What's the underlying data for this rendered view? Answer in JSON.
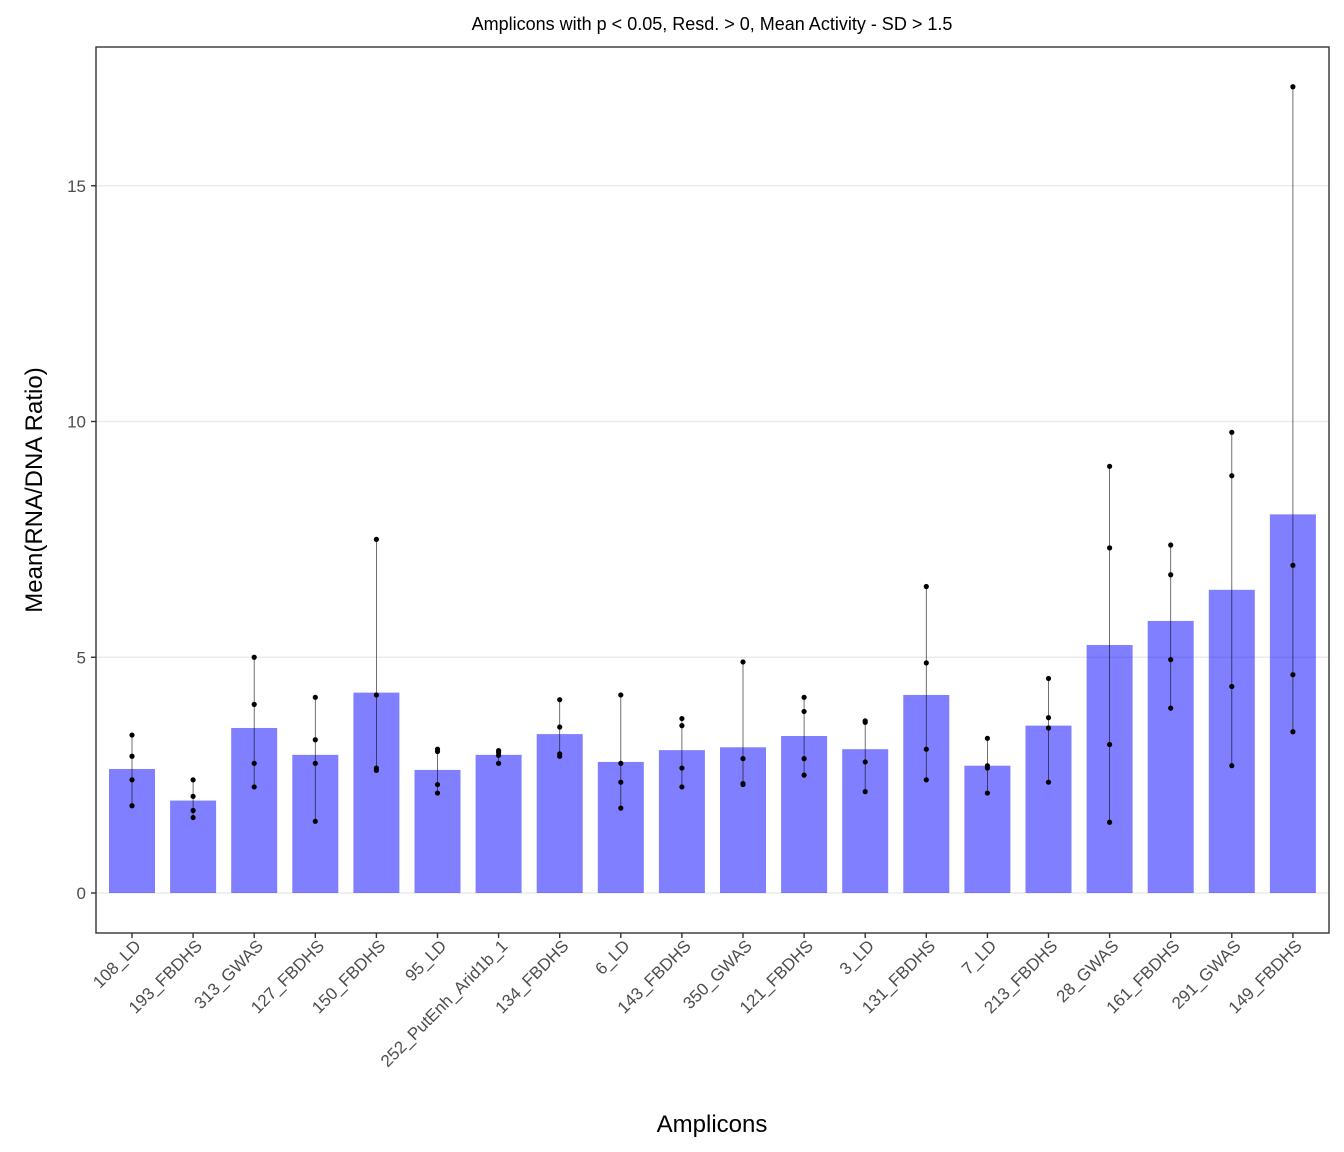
{
  "chart_data": {
    "type": "bar",
    "title": "Amplicons with p < 0.05, Resd. > 0, Mean Activity - SD >  1.5",
    "xlabel": "Amplicons",
    "ylabel": "Mean(RNA/DNA Ratio)",
    "ylim": [
      -0.8,
      17.5
    ],
    "yticks": [
      0,
      5,
      10,
      15
    ],
    "grid": true,
    "bar_color": "#0000ff",
    "bar_opacity": 0.5,
    "point_color": "#000000",
    "categories": [
      "108_LD",
      "193_FBDHS",
      "313_GWAS",
      "127_FBDHS",
      "150_FBDHS",
      "95_LD",
      "252_PutEnh_Arid1b_1",
      "134_FBDHS",
      "6_LD",
      "143_FBDHS",
      "350_GWAS",
      "121_FBDHS",
      "3_LD",
      "131_FBDHS",
      "7_LD",
      "213_FBDHS",
      "28_GWAS",
      "161_FBDHS",
      "291_GWAS",
      "149_FBDHS"
    ],
    "values": [
      2.63,
      1.96,
      3.5,
      2.93,
      4.25,
      2.61,
      2.93,
      3.37,
      2.78,
      3.03,
      3.09,
      3.33,
      3.05,
      4.2,
      2.7,
      3.55,
      5.26,
      5.77,
      6.43,
      8.03
    ],
    "points": [
      [
        3.35,
        2.9,
        2.4,
        1.85
      ],
      [
        2.4,
        2.05,
        1.75,
        1.6
      ],
      [
        5.0,
        4.0,
        2.75,
        2.25
      ],
      [
        4.15,
        3.25,
        2.75,
        1.52
      ],
      [
        7.5,
        4.2,
        2.65,
        2.6
      ],
      [
        3.05,
        3.0,
        2.3,
        2.12
      ],
      [
        3.02,
        2.98,
        2.92,
        2.75
      ],
      [
        4.1,
        3.52,
        2.95,
        2.9
      ],
      [
        4.2,
        2.75,
        2.35,
        1.8
      ],
      [
        3.7,
        3.55,
        2.65,
        2.25
      ],
      [
        4.9,
        2.85,
        2.32,
        2.3
      ],
      [
        4.15,
        3.85,
        2.85,
        2.5
      ],
      [
        3.65,
        3.62,
        2.78,
        2.15
      ],
      [
        6.5,
        4.88,
        3.05,
        2.4
      ],
      [
        3.28,
        2.7,
        2.65,
        2.12
      ],
      [
        4.55,
        3.72,
        3.5,
        2.35
      ],
      [
        9.05,
        7.32,
        3.15,
        1.5
      ],
      [
        7.38,
        6.75,
        4.95,
        3.92
      ],
      [
        9.77,
        8.85,
        4.38,
        2.7
      ],
      [
        17.1,
        6.95,
        4.63,
        3.42
      ]
    ]
  }
}
